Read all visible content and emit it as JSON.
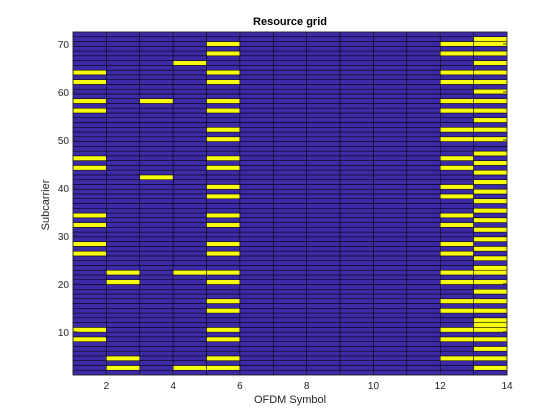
{
  "chart_data": {
    "type": "heatmap",
    "title": "Resource grid",
    "xlabel": "OFDM Symbol",
    "ylabel": "Subcarrier",
    "xlim": [
      1,
      14
    ],
    "ylim": [
      1,
      72.5
    ],
    "xticks": [
      2,
      4,
      6,
      8,
      10,
      12,
      14
    ],
    "yticks": [
      10,
      20,
      30,
      40,
      50,
      60,
      70
    ],
    "n_symbols": 13,
    "n_subcarriers": 72,
    "colors": {
      "empty": "#3d2aa6",
      "occupied": "#f9fb0e",
      "cell_edge": "#000000"
    },
    "occupied": [
      {
        "symbol": 1,
        "subcarriers": [
          8,
          10,
          26,
          28,
          32,
          34,
          44,
          46,
          56,
          58,
          62,
          64
        ]
      },
      {
        "symbol": 2,
        "subcarriers": [
          2,
          4,
          20,
          22
        ]
      },
      {
        "symbol": 3,
        "subcarriers": [
          42,
          58
        ]
      },
      {
        "symbol": 4,
        "subcarriers": [
          2,
          22,
          66
        ]
      },
      {
        "symbol": 5,
        "subcarriers": [
          2,
          4,
          8,
          10,
          14,
          16,
          20,
          22,
          26,
          28,
          32,
          34,
          38,
          40,
          44,
          46,
          50,
          52,
          56,
          58,
          62,
          64,
          68,
          70
        ]
      },
      {
        "symbol": 12,
        "subcarriers": [
          4,
          8,
          10,
          14,
          16,
          20,
          22,
          26,
          28,
          32,
          34,
          38,
          40,
          44,
          46,
          50,
          52,
          56,
          58,
          62,
          64,
          68,
          70
        ]
      },
      {
        "symbol": 13,
        "subcarriers": [
          2,
          4,
          6,
          8,
          10,
          11,
          12,
          14,
          16,
          18,
          20,
          22,
          23,
          25,
          27,
          29,
          31,
          33,
          35,
          37,
          39,
          41,
          43,
          45,
          47,
          50,
          52,
          54,
          56,
          58,
          60,
          62,
          64,
          66,
          68,
          70,
          71
        ]
      }
    ]
  }
}
